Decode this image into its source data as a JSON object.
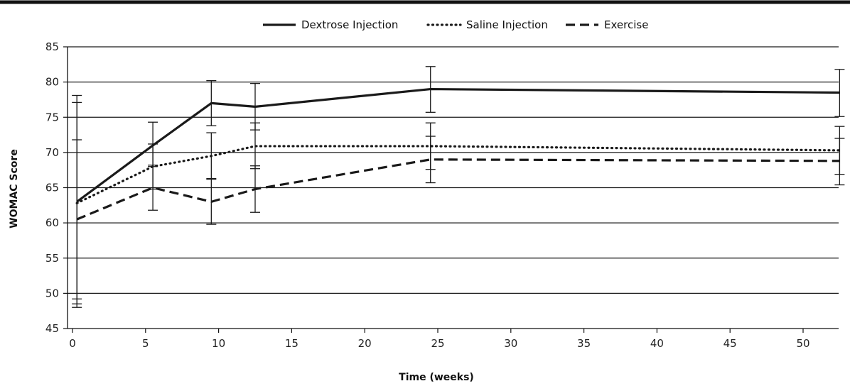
{
  "chart_data": {
    "type": "line",
    "title": "",
    "xlabel": "Time (weeks)",
    "ylabel": "WOMAC Score",
    "xlim": [
      0,
      53
    ],
    "ylim": [
      45,
      85
    ],
    "x_ticks": [
      0,
      5,
      10,
      15,
      20,
      25,
      30,
      35,
      40,
      45,
      50
    ],
    "y_ticks": [
      45,
      50,
      55,
      60,
      65,
      70,
      75,
      80,
      85
    ],
    "grid": "horizontal",
    "legend_position": "top",
    "colors": {
      "line": "#1a1a1a",
      "grid": "#1a1a1a",
      "top_rule": "#111111"
    },
    "series": [
      {
        "name": "Dextrose Injection",
        "style": "solid",
        "x": [
          0.3,
          5.5,
          9.5,
          12.5,
          24.5,
          52.5
        ],
        "y": [
          63.0,
          71.0,
          77.0,
          76.5,
          79.0,
          78.5
        ],
        "error_low": [
          48.0,
          68.0,
          73.8,
          73.2,
          75.7,
          75.1
        ],
        "error_high": [
          78.1,
          74.3,
          80.2,
          79.8,
          82.2,
          81.8
        ]
      },
      {
        "name": "Saline Injection",
        "style": "dotted",
        "x": [
          0.3,
          5.5,
          9.5,
          12.5,
          24.5,
          52.5
        ],
        "y": [
          62.8,
          68.0,
          69.5,
          70.9,
          70.9,
          70.3
        ],
        "error_low": [
          48.5,
          64.8,
          66.2,
          67.7,
          67.6,
          66.9
        ],
        "error_high": [
          77.1,
          71.2,
          72.8,
          74.2,
          74.2,
          73.7
        ]
      },
      {
        "name": "Exercise",
        "style": "dashed",
        "x": [
          0.3,
          5.5,
          9.5,
          12.5,
          24.5,
          52.5
        ],
        "y": [
          60.5,
          65.0,
          63.0,
          64.8,
          69.0,
          68.8
        ],
        "error_low": [
          49.2,
          61.8,
          59.8,
          61.5,
          65.7,
          65.4
        ],
        "error_high": [
          71.8,
          68.2,
          66.3,
          68.1,
          72.3,
          72.0
        ]
      }
    ]
  }
}
